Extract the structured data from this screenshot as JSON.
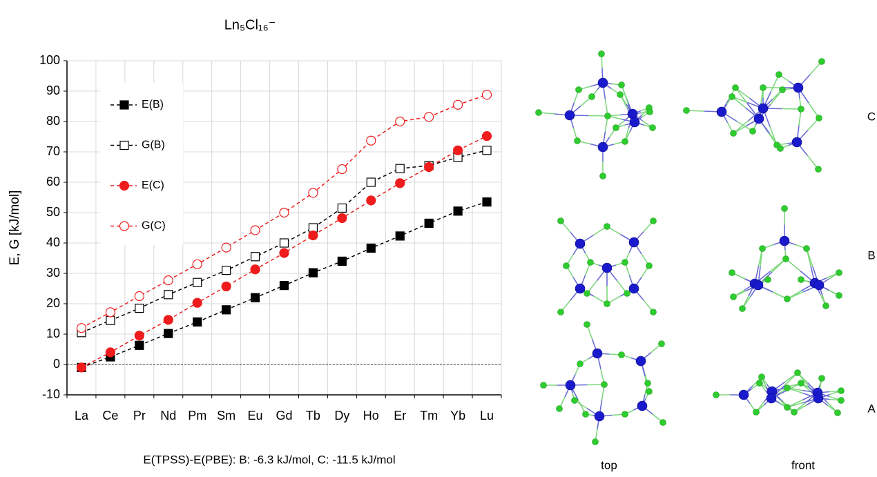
{
  "chart_data": {
    "type": "line",
    "title": "Ln₅Cl₁₆⁻",
    "y_label": "E, G  [kJ/mol]",
    "note": "E(TPSS)-E(PBE): B: -6.3 kJ/mol, C: -11.5 kJ/mol",
    "categories": [
      "La",
      "Ce",
      "Pr",
      "Nd",
      "Pm",
      "Sm",
      "Eu",
      "Gd",
      "Tb",
      "Dy",
      "Ho",
      "Er",
      "Tm",
      "Yb",
      "Lu"
    ],
    "series": [
      {
        "name": "E(B)",
        "color": "#000000",
        "marker": "square",
        "filled": true,
        "values": [
          -1,
          2.5,
          6.3,
          10.2,
          14,
          18,
          22,
          26,
          30.2,
          34,
          38.3,
          42.3,
          46.5,
          50.5,
          53.5
        ]
      },
      {
        "name": "G(B)",
        "color": "#000000",
        "marker": "square",
        "filled": false,
        "values": [
          10.5,
          14.5,
          18.5,
          23,
          27,
          31,
          35.5,
          40,
          45,
          51.5,
          60,
          64.5,
          65.5,
          68.2,
          70.5
        ]
      },
      {
        "name": "E(C)",
        "color": "#ee1c1c",
        "marker": "circle",
        "filled": true,
        "values": [
          -1,
          4,
          9.5,
          14.7,
          20.3,
          25.7,
          31.3,
          36.7,
          42.5,
          48.2,
          54,
          59.7,
          65,
          70.5,
          75.2
        ]
      },
      {
        "name": "G(C)",
        "color": "#ee1c1c",
        "marker": "circle",
        "filled": false,
        "values": [
          12,
          17.2,
          22.5,
          27.7,
          33,
          38.5,
          44.2,
          50,
          56.5,
          64.3,
          73.7,
          80,
          81.5,
          85.5,
          88.8
        ]
      }
    ],
    "ylim": [
      -10,
      100
    ],
    "yticks": [
      -10,
      0,
      10,
      20,
      30,
      40,
      50,
      60,
      70,
      80,
      90,
      100
    ],
    "grid": true,
    "axhline": 0,
    "legend": "upper left",
    "line_style": "dashed"
  },
  "panels": {
    "rows": [
      "C",
      "B",
      "A"
    ],
    "columns": [
      "top",
      "front"
    ]
  }
}
